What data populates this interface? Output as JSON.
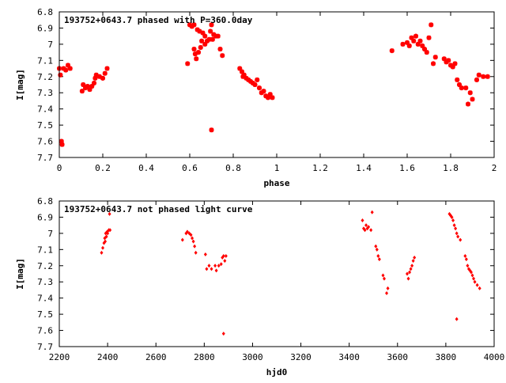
{
  "chart_data": [
    {
      "type": "scatter",
      "title": "193752+0643.7 phased with P=360.0day",
      "xlabel": "phase",
      "ylabel": "I[mag]",
      "xlim": [
        0,
        2
      ],
      "ylim": [
        6.8,
        7.7
      ],
      "y_inverted": true,
      "xticks": [
        "0",
        "0.2",
        "0.4",
        "0.6",
        "0.8",
        "1",
        "1.2",
        "1.4",
        "1.6",
        "1.8",
        "2"
      ],
      "yticks": [
        "6.8",
        "6.9",
        "7",
        "7.1",
        "7.2",
        "7.3",
        "7.4",
        "7.5",
        "7.6",
        "7.7"
      ],
      "marker_color": "#ff0000",
      "marker": "star",
      "grid": false,
      "legend": "none",
      "points": [
        [
          0.0,
          7.15
        ],
        [
          0.005,
          7.19
        ],
        [
          0.01,
          7.6
        ],
        [
          0.013,
          7.62
        ],
        [
          0.02,
          7.15
        ],
        [
          0.03,
          7.16
        ],
        [
          0.04,
          7.13
        ],
        [
          0.05,
          7.15
        ],
        [
          0.105,
          7.29
        ],
        [
          0.11,
          7.25
        ],
        [
          0.12,
          7.27
        ],
        [
          0.13,
          7.26
        ],
        [
          0.14,
          7.28
        ],
        [
          0.15,
          7.26
        ],
        [
          0.16,
          7.24
        ],
        [
          0.165,
          7.21
        ],
        [
          0.17,
          7.19
        ],
        [
          0.185,
          7.2
        ],
        [
          0.2,
          7.21
        ],
        [
          0.21,
          7.18
        ],
        [
          0.22,
          7.15
        ],
        [
          0.59,
          7.12
        ],
        [
          0.6,
          6.88
        ],
        [
          0.61,
          6.89
        ],
        [
          0.62,
          6.88
        ],
        [
          0.62,
          7.03
        ],
        [
          0.625,
          7.06
        ],
        [
          0.63,
          7.09
        ],
        [
          0.635,
          6.91
        ],
        [
          0.64,
          7.05
        ],
        [
          0.645,
          6.92
        ],
        [
          0.65,
          7.02
        ],
        [
          0.655,
          6.98
        ],
        [
          0.66,
          6.93
        ],
        [
          0.67,
          7.0
        ],
        [
          0.67,
          6.95
        ],
        [
          0.68,
          6.98
        ],
        [
          0.69,
          6.97
        ],
        [
          0.695,
          6.92
        ],
        [
          0.7,
          6.88
        ],
        [
          0.705,
          6.97
        ],
        [
          0.7,
          7.53
        ],
        [
          0.71,
          6.94
        ],
        [
          0.72,
          6.95
        ],
        [
          0.73,
          6.95
        ],
        [
          0.74,
          7.03
        ],
        [
          0.75,
          7.07
        ],
        [
          0.83,
          7.15
        ],
        [
          0.84,
          7.17
        ],
        [
          0.845,
          7.2
        ],
        [
          0.85,
          7.19
        ],
        [
          0.86,
          7.21
        ],
        [
          0.87,
          7.22
        ],
        [
          0.88,
          7.23
        ],
        [
          0.89,
          7.24
        ],
        [
          0.9,
          7.25
        ],
        [
          0.91,
          7.22
        ],
        [
          0.92,
          7.27
        ],
        [
          0.93,
          7.3
        ],
        [
          0.94,
          7.29
        ],
        [
          0.95,
          7.32
        ],
        [
          0.96,
          7.33
        ],
        [
          0.97,
          7.31
        ],
        [
          0.98,
          7.33
        ],
        [
          1.53,
          7.04
        ],
        [
          1.58,
          7.0
        ],
        [
          1.6,
          6.99
        ],
        [
          1.61,
          7.01
        ],
        [
          1.62,
          6.96
        ],
        [
          1.63,
          6.98
        ],
        [
          1.64,
          6.95
        ],
        [
          1.65,
          7.0
        ],
        [
          1.66,
          6.98
        ],
        [
          1.67,
          7.01
        ],
        [
          1.68,
          7.03
        ],
        [
          1.69,
          7.05
        ],
        [
          1.7,
          6.96
        ],
        [
          1.71,
          6.88
        ],
        [
          1.72,
          7.12
        ],
        [
          1.73,
          7.08
        ],
        [
          1.77,
          7.09
        ],
        [
          1.78,
          7.11
        ],
        [
          1.79,
          7.1
        ],
        [
          1.8,
          7.13
        ],
        [
          1.81,
          7.14
        ],
        [
          1.82,
          7.12
        ],
        [
          1.83,
          7.22
        ],
        [
          1.84,
          7.25
        ],
        [
          1.85,
          7.27
        ],
        [
          1.87,
          7.27
        ],
        [
          1.88,
          7.37
        ],
        [
          1.89,
          7.3
        ],
        [
          1.9,
          7.34
        ],
        [
          1.92,
          7.22
        ],
        [
          1.93,
          7.19
        ],
        [
          1.95,
          7.2
        ],
        [
          1.97,
          7.2
        ]
      ]
    },
    {
      "type": "scatter",
      "title": "193752+0643.7 not phased light curve",
      "xlabel": "hjd0",
      "ylabel": "I[mag]",
      "xlim": [
        2200,
        4000
      ],
      "ylim": [
        6.8,
        7.7
      ],
      "y_inverted": true,
      "xticks": [
        "2200",
        "2400",
        "2600",
        "2800",
        "3000",
        "3200",
        "3400",
        "3600",
        "3800",
        "4000"
      ],
      "yticks": [
        "6.8",
        "6.9",
        "7",
        "7.1",
        "7.2",
        "7.3",
        "7.4",
        "7.5",
        "7.6",
        "7.7"
      ],
      "marker_color": "#ff0000",
      "marker": "diamond",
      "grid": false,
      "legend": "none",
      "points": [
        [
          2375,
          7.12
        ],
        [
          2380,
          7.09
        ],
        [
          2385,
          7.06
        ],
        [
          2388,
          7.03
        ],
        [
          2390,
          7.05
        ],
        [
          2392,
          7.0
        ],
        [
          2395,
          7.02
        ],
        [
          2398,
          6.99
        ],
        [
          2400,
          7.0
        ],
        [
          2405,
          6.98
        ],
        [
          2410,
          6.98
        ],
        [
          2408,
          6.88
        ],
        [
          2710,
          7.04
        ],
        [
          2725,
          7.0
        ],
        [
          2730,
          6.99
        ],
        [
          2738,
          7.0
        ],
        [
          2745,
          7.01
        ],
        [
          2750,
          7.03
        ],
        [
          2755,
          7.05
        ],
        [
          2760,
          7.08
        ],
        [
          2765,
          7.12
        ],
        [
          2805,
          7.13
        ],
        [
          2810,
          7.22
        ],
        [
          2820,
          7.2
        ],
        [
          2830,
          7.22
        ],
        [
          2845,
          7.2
        ],
        [
          2850,
          7.23
        ],
        [
          2860,
          7.2
        ],
        [
          2870,
          7.19
        ],
        [
          2875,
          7.15
        ],
        [
          2880,
          7.14
        ],
        [
          2885,
          7.17
        ],
        [
          2890,
          7.14
        ],
        [
          2880,
          7.62
        ],
        [
          3455,
          6.92
        ],
        [
          3460,
          6.97
        ],
        [
          3465,
          6.98
        ],
        [
          3470,
          6.95
        ],
        [
          3475,
          6.97
        ],
        [
          3480,
          6.96
        ],
        [
          3490,
          6.98
        ],
        [
          3495,
          6.87
        ],
        [
          3510,
          7.08
        ],
        [
          3515,
          7.1
        ],
        [
          3520,
          7.14
        ],
        [
          3525,
          7.16
        ],
        [
          3540,
          7.26
        ],
        [
          3545,
          7.28
        ],
        [
          3555,
          7.37
        ],
        [
          3560,
          7.34
        ],
        [
          3640,
          7.25
        ],
        [
          3645,
          7.28
        ],
        [
          3650,
          7.24
        ],
        [
          3655,
          7.22
        ],
        [
          3660,
          7.2
        ],
        [
          3665,
          7.17
        ],
        [
          3670,
          7.15
        ],
        [
          3815,
          6.88
        ],
        [
          3820,
          6.89
        ],
        [
          3825,
          6.9
        ],
        [
          3830,
          6.92
        ],
        [
          3835,
          6.95
        ],
        [
          3840,
          6.97
        ],
        [
          3845,
          7.0
        ],
        [
          3850,
          7.02
        ],
        [
          3860,
          7.04
        ],
        [
          3845,
          7.53
        ],
        [
          3880,
          7.14
        ],
        [
          3885,
          7.16
        ],
        [
          3890,
          7.2
        ],
        [
          3895,
          7.22
        ],
        [
          3900,
          7.23
        ],
        [
          3905,
          7.24
        ],
        [
          3910,
          7.26
        ],
        [
          3915,
          7.28
        ],
        [
          3920,
          7.3
        ],
        [
          3930,
          7.32
        ],
        [
          3940,
          7.34
        ]
      ]
    }
  ]
}
